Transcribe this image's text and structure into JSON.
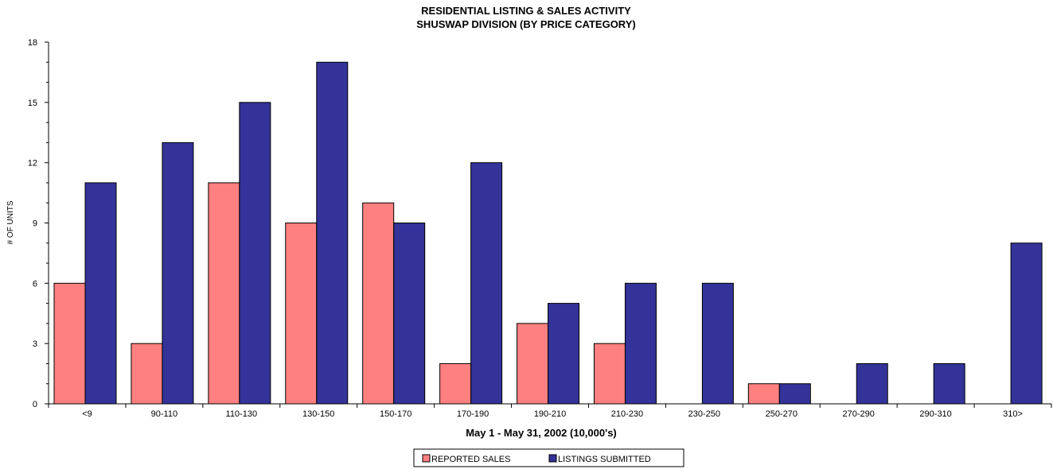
{
  "chart_data": {
    "type": "bar",
    "title": "RESIDENTIAL LISTING & SALES ACTIVITY",
    "subtitle": "SHUSWAP DIVISION (BY PRICE CATEGORY)",
    "xlabel": "May 1 - May 31, 2002 (10,000's)",
    "ylabel": "# OF UNITS",
    "ylim": [
      0,
      18
    ],
    "yticks": [
      0,
      3,
      6,
      9,
      12,
      15,
      18
    ],
    "grid": false,
    "legend_position": "bottom-center",
    "categories": [
      "<9",
      "90-110",
      "110-130",
      "130-150",
      "150-170",
      "170-190",
      "190-210",
      "210-230",
      "230-250",
      "250-270",
      "270-290",
      "290-310",
      "310>"
    ],
    "series": [
      {
        "name": "REPORTED SALES",
        "color": "#ff8080",
        "values": [
          6,
          3,
          11,
          9,
          10,
          2,
          4,
          3,
          0,
          1,
          0,
          0,
          0
        ]
      },
      {
        "name": "LISTINGS SUBMITTED",
        "color": "#333399",
        "values": [
          11,
          13,
          15,
          17,
          9,
          12,
          5,
          6,
          6,
          1,
          2,
          2,
          8
        ]
      }
    ]
  }
}
